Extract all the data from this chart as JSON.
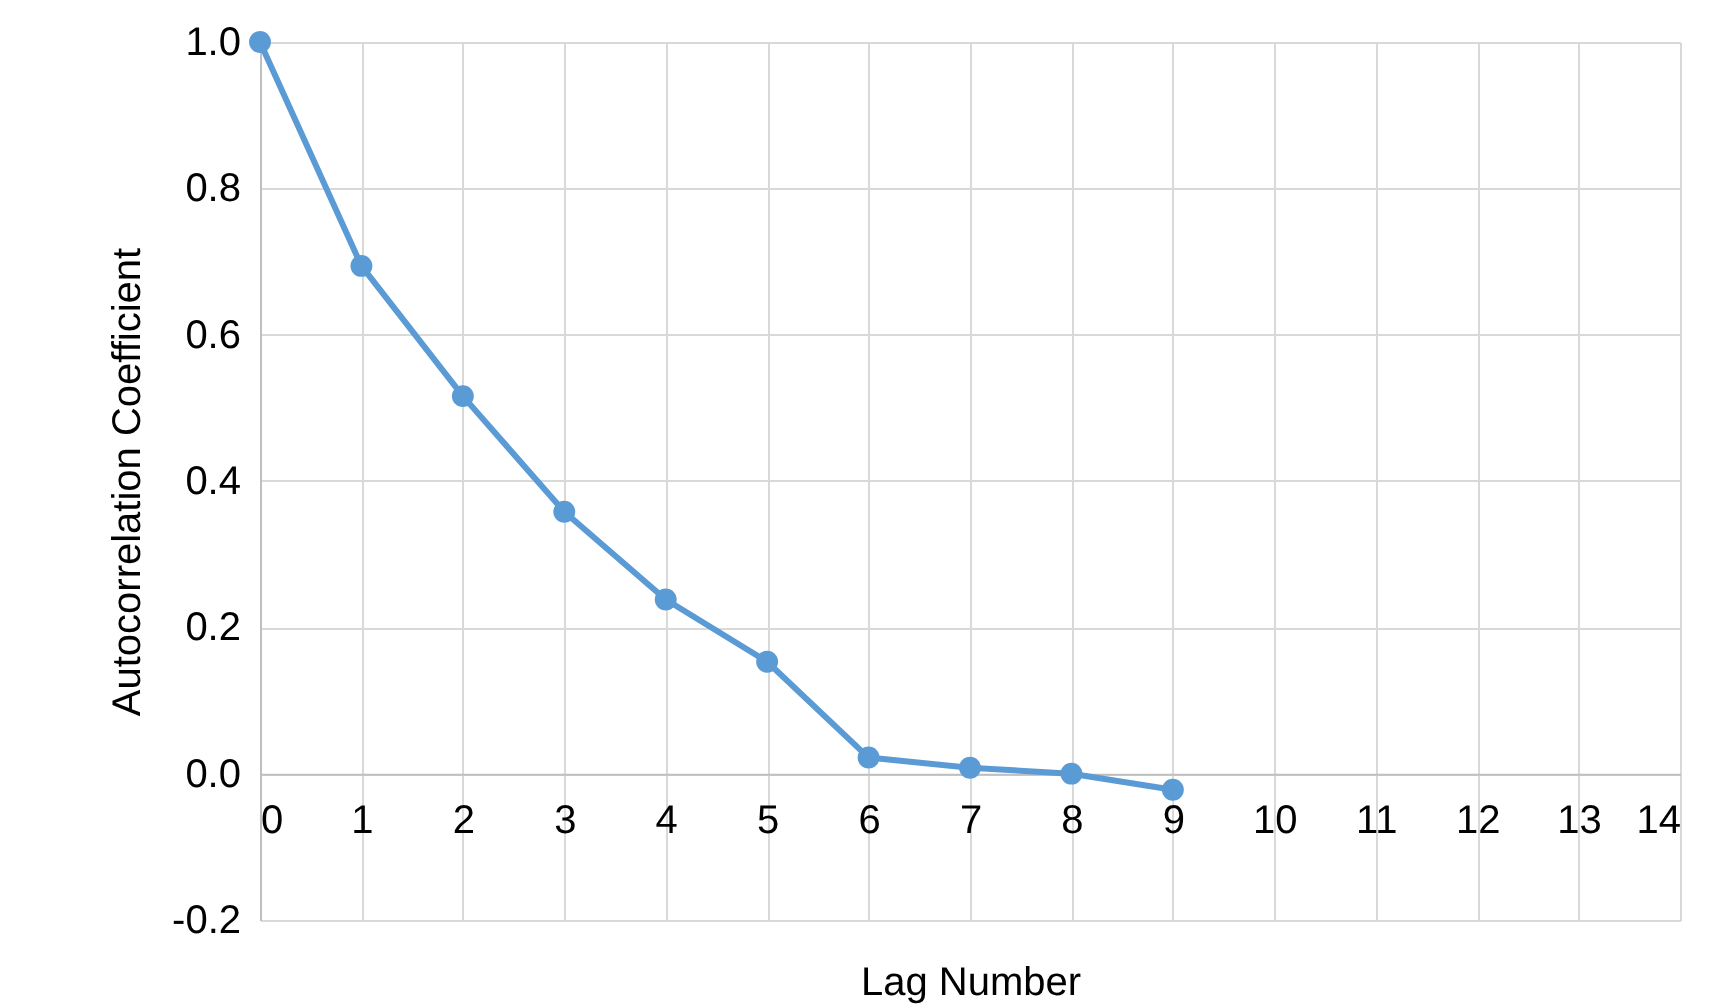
{
  "chart_data": {
    "type": "line",
    "xlabel": "Lag Number",
    "ylabel": "Autocorrelation Coefficient",
    "x": [
      0,
      1,
      2,
      3,
      4,
      5,
      6,
      7,
      8,
      9
    ],
    "series": [
      {
        "color": "#5b9bd5",
        "values": [
          1.0,
          0.694,
          0.516,
          0.358,
          0.238,
          0.153,
          0.022,
          0.008,
          0.0,
          -0.022
        ]
      }
    ],
    "xlim": [
      0,
      14
    ],
    "xticks": [
      0,
      1,
      2,
      3,
      4,
      5,
      6,
      7,
      8,
      9,
      10,
      11,
      12,
      13,
      14
    ],
    "ylim": [
      -0.2,
      1.0
    ],
    "yticks": [
      {
        "value": -0.2,
        "label": "-0.2"
      },
      {
        "value": 0,
        "label": "0.0"
      },
      {
        "value": 0.2,
        "label": "0.2"
      },
      {
        "value": 0.4,
        "label": "0.4"
      },
      {
        "value": 0.6,
        "label": "0.6"
      },
      {
        "value": 0.8,
        "label": "0.8"
      },
      {
        "value": 1.0,
        "label": "1.0"
      }
    ],
    "grid": true,
    "marker": "circle",
    "line_style": "solid"
  }
}
